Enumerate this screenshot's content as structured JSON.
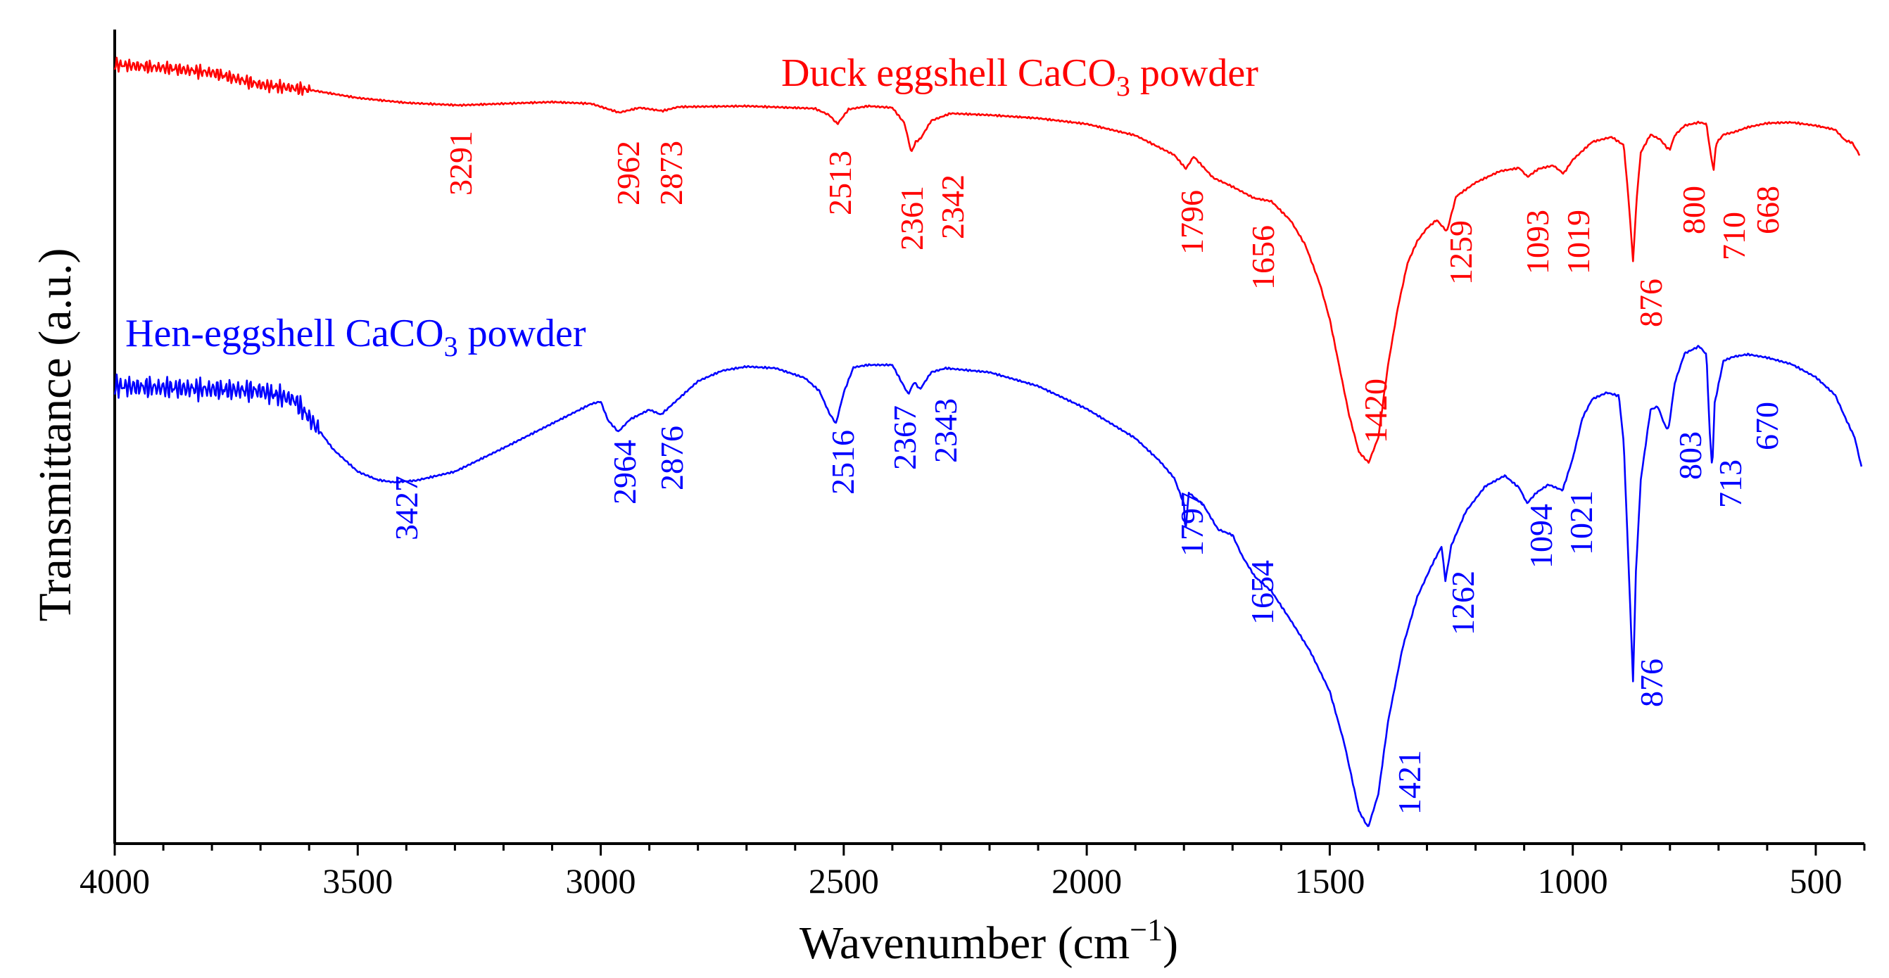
{
  "chart_data": {
    "type": "line",
    "title": "",
    "xlabel": "Wavenumber (cm",
    "xlabel_sup": "−1",
    "xlabel_close": ")",
    "ylabel": "Transmittance (a.u.)",
    "xlim": [
      4000,
      400
    ],
    "ylim": [
      0,
      100
    ],
    "x_reversed": true,
    "y_ticks_shown": false,
    "grid": false,
    "xticks": [
      "4000",
      "3500",
      "3000",
      "2500",
      "2000",
      "1500",
      "1000",
      "500"
    ],
    "series": [
      {
        "name_main": "Duck eggshell CaCO",
        "name_sub": "3",
        "name_tail": " powder",
        "color": "#ff0000",
        "noise_region": [
          4000,
          3600
        ],
        "points": [
          [
            4000,
            95.7
          ],
          [
            3900,
            95.3
          ],
          [
            3800,
            94.7
          ],
          [
            3700,
            93.2
          ],
          [
            3600,
            92.6
          ],
          [
            3500,
            91.6
          ],
          [
            3400,
            91.0
          ],
          [
            3291,
            90.7
          ],
          [
            3200,
            90.9
          ],
          [
            3100,
            91.1
          ],
          [
            3020,
            90.9
          ],
          [
            2962,
            89.8
          ],
          [
            2920,
            90.4
          ],
          [
            2873,
            90.0
          ],
          [
            2840,
            90.5
          ],
          [
            2700,
            90.6
          ],
          [
            2560,
            90.3
          ],
          [
            2530,
            89.5
          ],
          [
            2513,
            88.4
          ],
          [
            2490,
            90.2
          ],
          [
            2450,
            90.6
          ],
          [
            2400,
            90.4
          ],
          [
            2375,
            88.5
          ],
          [
            2361,
            84.9
          ],
          [
            2352,
            86.2
          ],
          [
            2342,
            86.6
          ],
          [
            2320,
            88.8
          ],
          [
            2280,
            89.7
          ],
          [
            2200,
            89.5
          ],
          [
            2100,
            89.1
          ],
          [
            2000,
            88.4
          ],
          [
            1900,
            87.0
          ],
          [
            1820,
            84.6
          ],
          [
            1796,
            82.9
          ],
          [
            1780,
            84.4
          ],
          [
            1740,
            81.8
          ],
          [
            1700,
            80.7
          ],
          [
            1656,
            79.3
          ],
          [
            1620,
            78.9
          ],
          [
            1580,
            76.5
          ],
          [
            1550,
            73.5
          ],
          [
            1520,
            68.7
          ],
          [
            1500,
            64.4
          ],
          [
            1480,
            58.5
          ],
          [
            1460,
            52.6
          ],
          [
            1440,
            48.1
          ],
          [
            1420,
            46.8
          ],
          [
            1400,
            49.9
          ],
          [
            1380,
            58.8
          ],
          [
            1360,
            65.8
          ],
          [
            1340,
            71.3
          ],
          [
            1320,
            74.0
          ],
          [
            1300,
            75.6
          ],
          [
            1280,
            76.6
          ],
          [
            1259,
            75.2
          ],
          [
            1240,
            79.5
          ],
          [
            1200,
            81.2
          ],
          [
            1150,
            82.6
          ],
          [
            1110,
            83.0
          ],
          [
            1093,
            81.9
          ],
          [
            1070,
            82.9
          ],
          [
            1040,
            83.3
          ],
          [
            1019,
            82.3
          ],
          [
            1000,
            84.0
          ],
          [
            960,
            86.2
          ],
          [
            920,
            86.8
          ],
          [
            895,
            85.8
          ],
          [
            885,
            79.0
          ],
          [
            876,
            71.6
          ],
          [
            868,
            79.6
          ],
          [
            860,
            84.9
          ],
          [
            840,
            87.1
          ],
          [
            820,
            86.5
          ],
          [
            805,
            85.4
          ],
          [
            800,
            85.3
          ],
          [
            790,
            87.0
          ],
          [
            770,
            88.2
          ],
          [
            740,
            88.6
          ],
          [
            725,
            88.4
          ],
          [
            715,
            84.2
          ],
          [
            710,
            82.8
          ],
          [
            705,
            86.0
          ],
          [
            690,
            87.1
          ],
          [
            668,
            87.4
          ],
          [
            640,
            88.0
          ],
          [
            600,
            88.5
          ],
          [
            550,
            88.6
          ],
          [
            500,
            88.2
          ],
          [
            460,
            87.7
          ],
          [
            440,
            86.4
          ],
          [
            425,
            86.1
          ],
          [
            410,
            84.6
          ]
        ],
        "peak_labels": [
          "3291",
          "2962",
          "2873",
          "2513",
          "2361",
          "2342",
          "1796",
          "1656",
          "1420",
          "1259",
          "1093",
          "1019",
          "876",
          "800",
          "710",
          "668"
        ]
      },
      {
        "name_main": "Hen-eggshell CaCO",
        "name_sub": "3",
        "name_tail": " powder",
        "color": "#0000ff",
        "noise_region": [
          4000,
          3580
        ],
        "points": [
          [
            4000,
            56.2
          ],
          [
            3900,
            56.0
          ],
          [
            3800,
            55.8
          ],
          [
            3700,
            55.6
          ],
          [
            3630,
            54.5
          ],
          [
            3580,
            50.8
          ],
          [
            3550,
            48.4
          ],
          [
            3500,
            45.7
          ],
          [
            3460,
            44.7
          ],
          [
            3427,
            44.4
          ],
          [
            3380,
            44.6
          ],
          [
            3300,
            45.7
          ],
          [
            3200,
            48.6
          ],
          [
            3100,
            51.6
          ],
          [
            3020,
            54.0
          ],
          [
            3000,
            54.3
          ],
          [
            2985,
            52.0
          ],
          [
            2964,
            50.6
          ],
          [
            2940,
            52.1
          ],
          [
            2900,
            53.3
          ],
          [
            2876,
            52.7
          ],
          [
            2850,
            54.1
          ],
          [
            2800,
            56.8
          ],
          [
            2750,
            58.1
          ],
          [
            2700,
            58.6
          ],
          [
            2640,
            58.4
          ],
          [
            2580,
            57.2
          ],
          [
            2550,
            55.6
          ],
          [
            2530,
            52.9
          ],
          [
            2516,
            51.6
          ],
          [
            2500,
            55.4
          ],
          [
            2480,
            58.5
          ],
          [
            2450,
            58.8
          ],
          [
            2400,
            58.8
          ],
          [
            2380,
            56.6
          ],
          [
            2367,
            55.2
          ],
          [
            2355,
            56.7
          ],
          [
            2343,
            55.8
          ],
          [
            2320,
            57.9
          ],
          [
            2290,
            58.4
          ],
          [
            2200,
            57.9
          ],
          [
            2100,
            56.2
          ],
          [
            2000,
            53.4
          ],
          [
            1900,
            49.8
          ],
          [
            1850,
            47.0
          ],
          [
            1820,
            44.9
          ],
          [
            1800,
            41.7
          ],
          [
            1797,
            38.2
          ],
          [
            1790,
            43.1
          ],
          [
            1760,
            41.6
          ],
          [
            1730,
            38.6
          ],
          [
            1700,
            37.9
          ],
          [
            1680,
            35.3
          ],
          [
            1654,
            32.8
          ],
          [
            1620,
            31.0
          ],
          [
            1580,
            27.4
          ],
          [
            1540,
            23.6
          ],
          [
            1500,
            18.7
          ],
          [
            1470,
            12.3
          ],
          [
            1440,
            4.0
          ],
          [
            1421,
            2.0
          ],
          [
            1400,
            6.1
          ],
          [
            1380,
            15.0
          ],
          [
            1350,
            24.1
          ],
          [
            1320,
            30.3
          ],
          [
            1290,
            34.2
          ],
          [
            1270,
            36.5
          ],
          [
            1262,
            32.3
          ],
          [
            1250,
            36.6
          ],
          [
            1220,
            40.8
          ],
          [
            1180,
            43.9
          ],
          [
            1140,
            45.2
          ],
          [
            1110,
            43.7
          ],
          [
            1094,
            41.8
          ],
          [
            1075,
            43.1
          ],
          [
            1050,
            44.1
          ],
          [
            1021,
            43.4
          ],
          [
            1000,
            47.3
          ],
          [
            980,
            52.3
          ],
          [
            960,
            54.6
          ],
          [
            930,
            55.4
          ],
          [
            905,
            55.0
          ],
          [
            895,
            49.1
          ],
          [
            885,
            34.0
          ],
          [
            876,
            20.0
          ],
          [
            870,
            33.4
          ],
          [
            860,
            44.7
          ],
          [
            840,
            53.3
          ],
          [
            825,
            53.7
          ],
          [
            810,
            51.3
          ],
          [
            803,
            50.9
          ],
          [
            790,
            56.6
          ],
          [
            770,
            60.2
          ],
          [
            740,
            61.1
          ],
          [
            725,
            60.1
          ],
          [
            718,
            50.4
          ],
          [
            713,
            45.9
          ],
          [
            708,
            54.1
          ],
          [
            690,
            59.3
          ],
          [
            670,
            59.8
          ],
          [
            640,
            60.1
          ],
          [
            600,
            59.7
          ],
          [
            550,
            58.9
          ],
          [
            500,
            57.3
          ],
          [
            460,
            55.1
          ],
          [
            440,
            52.4
          ],
          [
            420,
            49.9
          ],
          [
            405,
            46.0
          ]
        ],
        "peak_labels": [
          "3427",
          "2964",
          "2876",
          "2516",
          "2367",
          "2343",
          "1797",
          "1654",
          "1421",
          "1262",
          "1094",
          "1021",
          "876",
          "803",
          "713",
          "670"
        ]
      }
    ]
  }
}
